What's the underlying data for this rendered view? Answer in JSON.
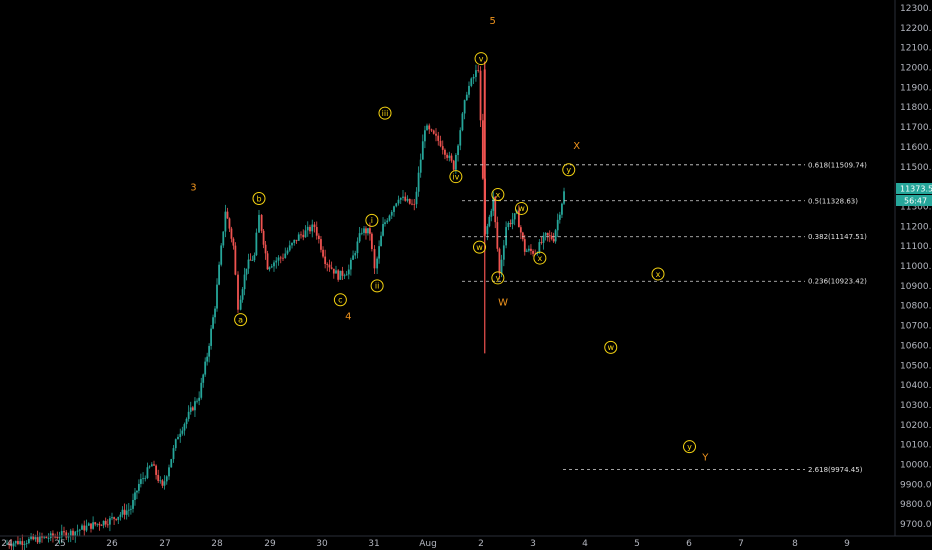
{
  "chart_data": {
    "type": "candlestick",
    "x_ticks": [
      "24",
      "25",
      "26",
      "27",
      "28",
      "29",
      "30",
      "31",
      "Aug",
      "2",
      "3",
      "4",
      "5",
      "6",
      "7",
      "8",
      "9"
    ],
    "y_ticks": [
      "9700.00",
      "9800.00",
      "9900.00",
      "10000.00",
      "10100.00",
      "10200.00",
      "10300.00",
      "10400.00",
      "10500.00",
      "10600.00",
      "10700.00",
      "10800.00",
      "10900.00",
      "11000.00",
      "11100.00",
      "11200.00",
      "11300.00",
      "11400.00",
      "11500.00",
      "11600.00",
      "11700.00",
      "11800.00",
      "11900.00",
      "12000.00",
      "12100.00",
      "12200.00",
      "12300.00"
    ],
    "ylim": [
      9640,
      12340
    ],
    "last_price": "11373.53",
    "countdown": "56:47",
    "fib_levels": [
      {
        "label": "0.618(11509.74)",
        "value": 11509.74
      },
      {
        "label": "0.5(11328.63)",
        "value": 11328.63
      },
      {
        "label": "0.382(11147.51)",
        "value": 11147.51
      },
      {
        "label": "0.236(10923.42)",
        "value": 10923.42
      },
      {
        "label": "2.618(9974.45)",
        "value": 9974.45
      }
    ],
    "orange_labels": [
      {
        "text": "3",
        "x": 27.55,
        "y": 11380
      },
      {
        "text": "4",
        "x": 30.5,
        "y": 10730
      },
      {
        "text": "5",
        "x": 33.25,
        "y": 12220
      },
      {
        "text": "W",
        "x": 33.45,
        "y": 10800
      },
      {
        "text": "X",
        "x": 34.85,
        "y": 11590
      },
      {
        "text": "Y",
        "x": 37.3,
        "y": 10020
      }
    ],
    "circle_labels": [
      {
        "text": "a",
        "x": 28.45,
        "y": 10730
      },
      {
        "text": "b",
        "x": 28.8,
        "y": 11340
      },
      {
        "text": "c",
        "x": 30.35,
        "y": 10830
      },
      {
        "text": "i",
        "x": 30.95,
        "y": 11230
      },
      {
        "text": "ii",
        "x": 31.05,
        "y": 10900
      },
      {
        "text": "iii",
        "x": 31.2,
        "y": 11770
      },
      {
        "text": "iv",
        "x": 32.55,
        "y": 11450
      },
      {
        "text": "v",
        "x": 33.03,
        "y": 12045
      },
      {
        "text": "w",
        "x": 33.0,
        "y": 11095
      },
      {
        "text": "x",
        "x": 33.35,
        "y": 11360
      },
      {
        "text": "y",
        "x": 33.35,
        "y": 10940
      },
      {
        "text": "w",
        "x": 33.8,
        "y": 11290
      },
      {
        "text": "x",
        "x": 34.15,
        "y": 11040
      },
      {
        "text": "y",
        "x": 34.7,
        "y": 11485
      },
      {
        "text": "x",
        "x": 36.4,
        "y": 10960
      },
      {
        "text": "w",
        "x": 35.5,
        "y": 10590
      },
      {
        "text": "y",
        "x": 37.0,
        "y": 10090
      }
    ]
  },
  "legend": {
    "last_price_label": "11373.53",
    "countdown_label": "56:47"
  }
}
